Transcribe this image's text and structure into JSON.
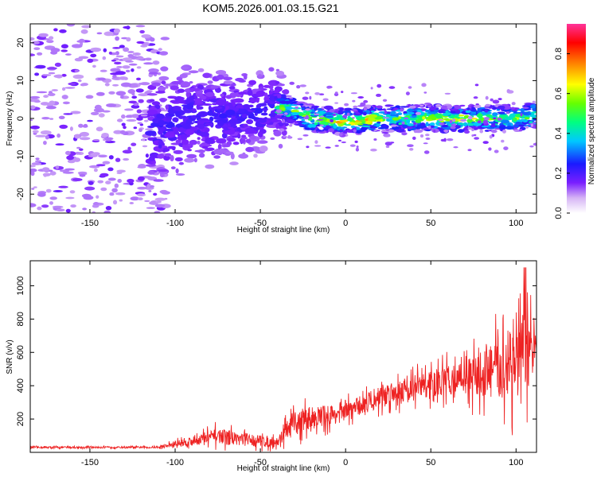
{
  "title": "KOM5.2026.001.03.15.G21",
  "chart_data": [
    {
      "type": "heatmap",
      "name": "spectrogram",
      "xlabel": "Height of straight line (km)",
      "ylabel": "Frequency (Hz)",
      "xlim": [
        -185,
        112
      ],
      "ylim": [
        -25,
        25
      ],
      "xticks": [
        -150,
        -100,
        -50,
        0,
        50,
        100
      ],
      "yticks": [
        -20,
        -10,
        0,
        10,
        20
      ],
      "colorbar": {
        "label": "Normalized spectral amplitude",
        "range": [
          0.0,
          0.95
        ],
        "ticks": [
          0.0,
          0.2,
          0.4,
          0.6,
          0.8
        ],
        "tick_labels": [
          "0.0",
          "0.2",
          "0.4",
          "0.6",
          "0.8"
        ]
      },
      "ridge": [
        {
          "x": -110,
          "f": -3
        },
        {
          "x": -90,
          "f": 1
        },
        {
          "x": -70,
          "f": 0
        },
        {
          "x": -50,
          "f": 2
        },
        {
          "x": -40,
          "f": 3
        },
        {
          "x": -30,
          "f": 2
        },
        {
          "x": -20,
          "f": 0
        },
        {
          "x": 0,
          "f": -1
        },
        {
          "x": 20,
          "f": 0
        },
        {
          "x": 40,
          "f": 0
        },
        {
          "x": 60,
          "f": 0
        },
        {
          "x": 80,
          "f": 0
        },
        {
          "x": 100,
          "f": 0
        },
        {
          "x": 112,
          "f": 1
        }
      ]
    },
    {
      "type": "line",
      "name": "snr",
      "xlabel": "Height of straight line (km)",
      "ylabel": "SNR (v/v)",
      "xlim": [
        -185,
        112
      ],
      "ylim": [
        0,
        1150
      ],
      "xticks": [
        -150,
        -100,
        -50,
        0,
        50,
        100
      ],
      "yticks": [
        200,
        400,
        600,
        800,
        1000
      ],
      "color": "#ee2222",
      "trend": [
        {
          "x": -185,
          "y": 30
        },
        {
          "x": -110,
          "y": 30
        },
        {
          "x": -100,
          "y": 50
        },
        {
          "x": -75,
          "y": 100
        },
        {
          "x": -60,
          "y": 80
        },
        {
          "x": -50,
          "y": 70
        },
        {
          "x": -40,
          "y": 60
        },
        {
          "x": -35,
          "y": 130
        },
        {
          "x": -25,
          "y": 200
        },
        {
          "x": 0,
          "y": 240
        },
        {
          "x": 25,
          "y": 360
        },
        {
          "x": 50,
          "y": 410
        },
        {
          "x": 75,
          "y": 460
        },
        {
          "x": 90,
          "y": 500
        },
        {
          "x": 105,
          "y": 550
        },
        {
          "x": 112,
          "y": 630
        }
      ],
      "noise_amplitude": [
        {
          "x": -185,
          "a": 10
        },
        {
          "x": -110,
          "a": 10
        },
        {
          "x": -100,
          "a": 40
        },
        {
          "x": -75,
          "a": 90
        },
        {
          "x": -50,
          "a": 70
        },
        {
          "x": -40,
          "a": 60
        },
        {
          "x": -30,
          "a": 150
        },
        {
          "x": 0,
          "a": 110
        },
        {
          "x": 40,
          "a": 150
        },
        {
          "x": 70,
          "a": 190
        },
        {
          "x": 85,
          "a": 340
        },
        {
          "x": 100,
          "a": 450
        },
        {
          "x": 108,
          "a": 520
        },
        {
          "x": 112,
          "a": 30
        }
      ],
      "peak_value": 1110
    }
  ]
}
